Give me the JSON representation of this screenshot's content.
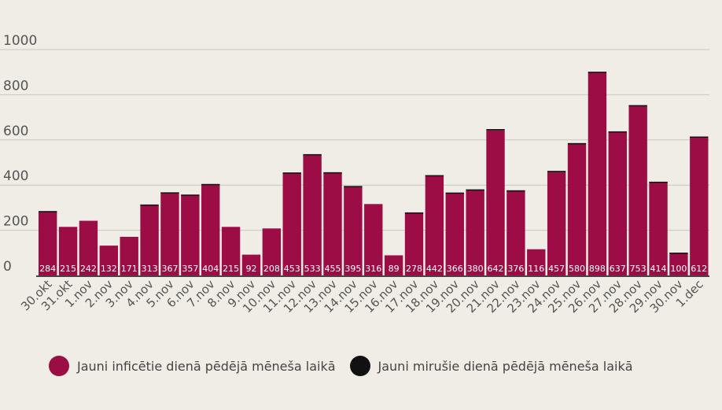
{
  "chart_data": {
    "type": "bar",
    "stacked": true,
    "categories": [
      "30.okt",
      "31.okt",
      "1.nov",
      "2.nov",
      "3.nov",
      "4.nov",
      "5.nov",
      "6.nov",
      "7.nov",
      "8.nov",
      "9.nov",
      "10.nov",
      "11.nov",
      "12.nov",
      "13.nov",
      "14.nov",
      "15.nov",
      "16.nov",
      "17.nov",
      "18.nov",
      "19.nov",
      "20.nov",
      "21.nov",
      "22.nov",
      "23.nov",
      "24.nov",
      "25.nov",
      "26.nov",
      "27.nov",
      "28.nov",
      "29.nov",
      "30.nov",
      "1.dec"
    ],
    "series": [
      {
        "name": "Jauni inficētie dienā pēdējā mēneša laikā",
        "color": "#9b0d44",
        "values": [
          284,
          215,
          242,
          132,
          171,
          313,
          367,
          357,
          404,
          215,
          92,
          208,
          453,
          533,
          455,
          395,
          316,
          89,
          278,
          442,
          366,
          380,
          642,
          376,
          116,
          457,
          580,
          898,
          637,
          753,
          414,
          100,
          612
        ]
      },
      {
        "name": "Jauni mirušie dienā pēdējā mēneša laikā",
        "color": "#111111",
        "values": [
          1,
          0,
          0,
          0,
          0,
          1,
          1,
          1,
          1,
          0,
          0,
          0,
          3,
          4,
          2,
          1,
          0,
          0,
          1,
          2,
          1,
          1,
          6,
          1,
          0,
          6,
          6,
          4,
          1,
          1,
          1,
          1,
          3
        ]
      }
    ],
    "yticks": [
      0,
      200,
      400,
      600,
      800,
      1000
    ],
    "ylim": [
      0,
      1000
    ],
    "grid": true,
    "legend_position": "bottom-left"
  },
  "colors": {
    "background": "#efede6",
    "grid": "#c9c6bf",
    "axis": "#444444",
    "label_text": "#ffffff",
    "tick_text": "#555555"
  }
}
